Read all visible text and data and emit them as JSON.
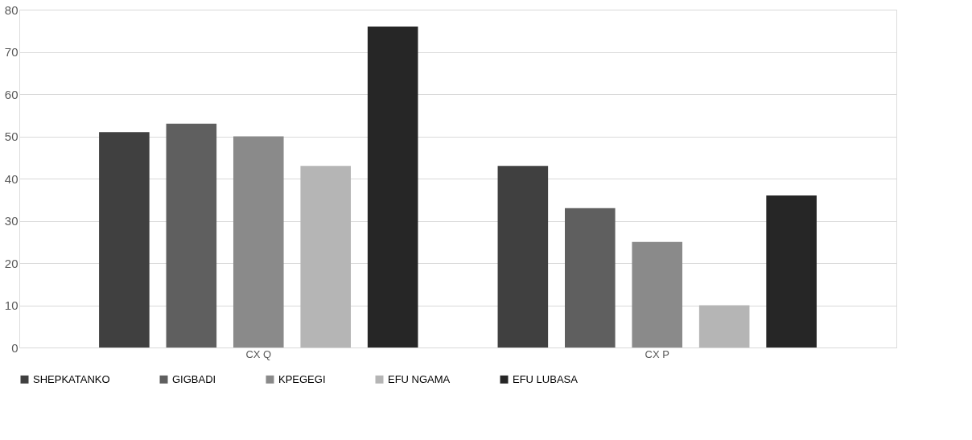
{
  "chart_data": {
    "type": "bar",
    "categories": [
      "CX Q",
      "CX P"
    ],
    "series": [
      {
        "name": "SHEPKATANKO",
        "color": "#404040",
        "values": [
          51,
          43
        ]
      },
      {
        "name": "GIGBADI",
        "color": "#5f5f5f",
        "values": [
          53,
          33
        ]
      },
      {
        "name": "KPEGEGI",
        "color": "#8a8a8a",
        "values": [
          50,
          25
        ]
      },
      {
        "name": "EFU NGAMA",
        "color": "#b5b5b5",
        "values": [
          43,
          10
        ]
      },
      {
        "name": "EFU LUBASA",
        "color": "#262626",
        "values": [
          76,
          36
        ]
      }
    ],
    "ylim": [
      0,
      80
    ],
    "yticks": [
      0,
      10,
      20,
      30,
      40,
      50,
      60,
      70,
      80
    ],
    "grid": "y",
    "legend": "bottom"
  }
}
